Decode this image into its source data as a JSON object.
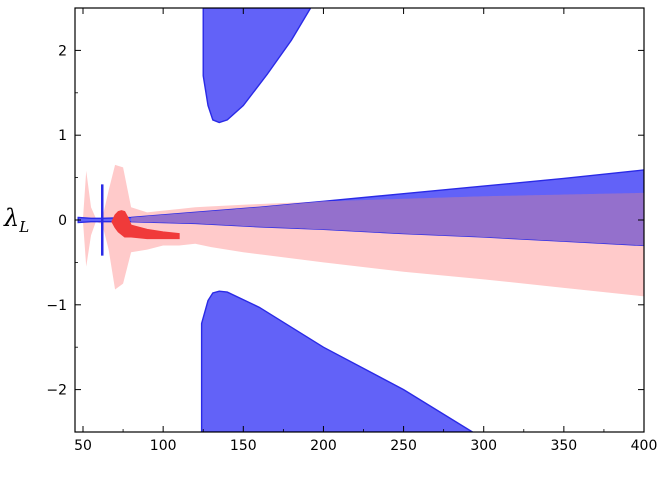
{
  "chart_data": {
    "type": "area",
    "title": "",
    "xlabel": "",
    "ylabel": "λ",
    "ylabel_sub": "L",
    "xlim": [
      45,
      400
    ],
    "ylim": [
      -2.5,
      2.5
    ],
    "xticks": [
      "50",
      "100",
      "150",
      "200",
      "250",
      "300",
      "350",
      "400"
    ],
    "yticks": [
      "2",
      "1",
      "0",
      "−1",
      "−2"
    ],
    "grid": false,
    "legend": "none",
    "colors": {
      "blue_fill": "#6262f8",
      "blue_edge": "#2a2ae6",
      "pink_fill": "#ffcaca",
      "red_fill": "#f03a3a",
      "overlap_fill": "#9470cc"
    },
    "series": [
      {
        "color": "blue",
        "regions": [
          {
            "part": "upper",
            "x": [
              125,
              125,
              128,
              131,
              135,
              140,
              150,
              165,
              180,
              192
            ],
            "lower": [
              2.5,
              1.7,
              1.35,
              1.18,
              1.15,
              1.18,
              1.35,
              1.72,
              2.12,
              2.5
            ]
          },
          {
            "part": "lower",
            "x": [
              124,
              124,
              128,
              131,
              135,
              140,
              160,
              200,
              250,
              293
            ],
            "upper": [
              -2.5,
              -1.22,
              -0.95,
              -0.86,
              -0.84,
              -0.85,
              -1.03,
              -1.5,
              -2.0,
              -2.5
            ]
          },
          {
            "part": "band",
            "x": [
              47,
              55,
              62,
              80,
              120,
              160,
              200,
              250,
              300,
              350,
              400
            ],
            "upper": [
              0.03,
              0.02,
              0.02,
              0.03,
              0.09,
              0.15,
              0.22,
              0.31,
              0.4,
              0.49,
              0.59
            ],
            "lower": [
              -0.03,
              -0.02,
              -0.02,
              -0.02,
              -0.04,
              -0.08,
              -0.11,
              -0.16,
              -0.2,
              -0.25,
              -0.3
            ]
          },
          {
            "part": "spike",
            "x": 62,
            "y": [
              -0.42,
              0.42
            ]
          }
        ]
      },
      {
        "color": "pink",
        "regions": [
          {
            "part": "band",
            "x": [
              50,
              52,
              55,
              58,
              62,
              66,
              70,
              75,
              80,
              90,
              100,
              110,
              120,
              130,
              150,
              200,
              250,
              300,
              350,
              400
            ],
            "upper": [
              0.02,
              0.58,
              0.15,
              0.02,
              0.02,
              0.35,
              0.65,
              0.62,
              0.15,
              0.09,
              0.11,
              0.13,
              0.15,
              0.16,
              0.18,
              0.22,
              0.25,
              0.28,
              0.3,
              0.32
            ],
            "lower": [
              -0.02,
              -0.55,
              -0.18,
              -0.02,
              -0.05,
              -0.35,
              -0.82,
              -0.75,
              -0.38,
              -0.35,
              -0.3,
              -0.3,
              -0.28,
              -0.32,
              -0.38,
              -0.5,
              -0.61,
              -0.7,
              -0.8,
              -0.9
            ]
          }
        ]
      },
      {
        "color": "red",
        "regions": [
          {
            "part": "blob",
            "x": [
              68,
              70,
              72,
              74,
              76,
              78,
              80,
              90,
              100,
              110,
              110,
              100,
              90,
              80,
              76,
              72,
              70,
              68
            ],
            "y": [
              -0.02,
              0.06,
              0.1,
              0.11,
              0.1,
              0.03,
              -0.06,
              -0.11,
              -0.14,
              -0.16,
              -0.22,
              -0.22,
              -0.22,
              -0.2,
              -0.2,
              -0.14,
              -0.09,
              -0.02
            ]
          }
        ]
      }
    ]
  }
}
